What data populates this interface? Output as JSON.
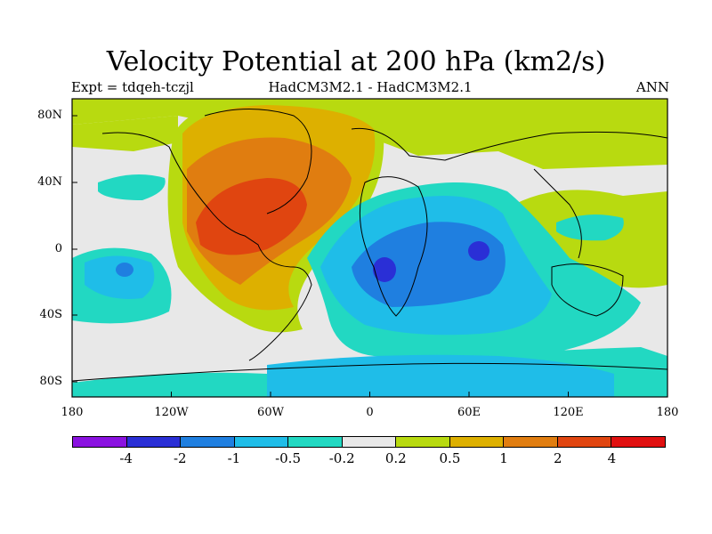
{
  "header": {
    "title": "Velocity Potential at 200 hPa (km2/s)",
    "expt": "Expt = tdqeh-tczjl",
    "models": "HadCM3M2.1 - HadCM3M2.1",
    "season": "ANN"
  },
  "axes": {
    "lat_labels": [
      "80N",
      "40N",
      "0",
      "40S",
      "80S"
    ],
    "lon_labels": [
      "180",
      "120W",
      "60W",
      "0",
      "60E",
      "120E",
      "180"
    ]
  },
  "colorbar": {
    "colors": [
      "#8a12e0",
      "#2a2fd6",
      "#1f7fe0",
      "#1fbde8",
      "#22d8c2",
      "#e8e8e8",
      "#b8da10",
      "#ddb000",
      "#e07d10",
      "#e04510",
      "#e01010"
    ],
    "labels": [
      "-4",
      "-2",
      "-1",
      "-0.5",
      "-0.2",
      "0.2",
      "0.5",
      "1",
      "2",
      "4"
    ]
  }
}
